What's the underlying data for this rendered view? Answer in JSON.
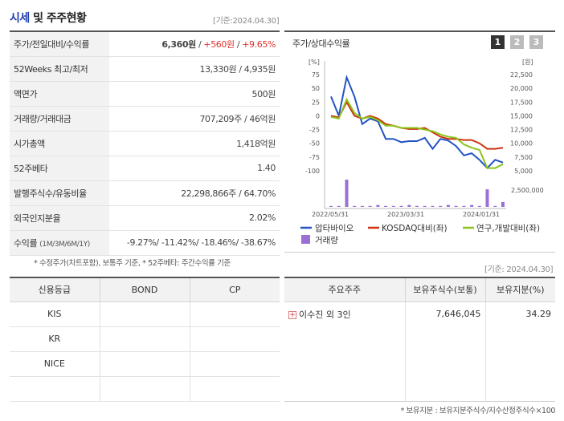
{
  "header": {
    "title_main": "시세",
    "title_rest": "및 주주현황",
    "base_date": "[기준:2024.04.30]"
  },
  "quote": {
    "price_label": "주가/전일대비/수익률",
    "price": "6,360원",
    "change": "+560원",
    "change_pct": "+9.65%",
    "week52_label": "52Weeks 최고/최저",
    "week52_value": "13,330원 / 4,935원",
    "par_label": "액면가",
    "par_value": "500원",
    "volume_label": "거래량/거래대금",
    "volume_value": "707,209주 / 46억원",
    "mcap_label": "시가총액",
    "mcap_value": "1,418억원",
    "beta_label": "52주베타",
    "beta_value": "1.40",
    "shares_label": "발행주식수/유동비율",
    "shares_value": "22,298,866주 / 64.70%",
    "foreign_label": "외국인지분율",
    "foreign_value": "2.02%",
    "return_label": "수익률",
    "return_sub": "(1M/3M/6M/1Y)",
    "return_values": [
      "-9.27%",
      "-11.42%",
      "-18.46%",
      "-38.67%"
    ],
    "note": "* 수정주가(차트포함), 보통주 기준, * 52주베타: 주간수익률 기준"
  },
  "chart_panel": {
    "title": "주가/상대수익률",
    "buttons": [
      "1",
      "2",
      "3"
    ],
    "base_date": "[기준: 2024.04.30]"
  },
  "chart_data": {
    "type": "line",
    "left_unit": "[%]",
    "right_unit": "[원]",
    "left_ticks": [
      "75",
      "50",
      "25",
      "0",
      "-25",
      "-50",
      "-75",
      "-100"
    ],
    "right_ticks": [
      "22,500",
      "20,000",
      "17,500",
      "15,000",
      "12,500",
      "10,000",
      "7,500",
      "5,000"
    ],
    "volume_tick": "2,500,000",
    "x_ticks": [
      "2022/05/31",
      "2023/03/31",
      "2024/01/31"
    ],
    "left_ylim": [
      -100,
      75
    ],
    "series": [
      {
        "name": "압타바이오",
        "color": "#2453c6",
        "values": [
          35,
          0,
          70,
          35,
          -15,
          -5,
          -10,
          -42,
          -42,
          -48,
          -46,
          -46,
          -40,
          -60,
          -42,
          -45,
          -55,
          -72,
          -68,
          -80,
          -95,
          -80,
          -85
        ]
      },
      {
        "name": "KOSDAQ대비(좌)",
        "color": "#cc3311",
        "values": [
          0,
          -3,
          25,
          0,
          -5,
          0,
          -5,
          -15,
          -18,
          -22,
          -24,
          -24,
          -22,
          -30,
          -38,
          -42,
          -42,
          -44,
          -44,
          -50,
          -60,
          -60,
          -58
        ]
      },
      {
        "name": "연구,개발대비(좌)",
        "color": "#8cc41a",
        "values": [
          -2,
          -5,
          30,
          5,
          -5,
          -2,
          -8,
          -18,
          -18,
          -22,
          -22,
          -22,
          -25,
          -28,
          -34,
          -38,
          -40,
          -52,
          -58,
          -62,
          -95,
          -95,
          -88
        ]
      },
      {
        "name": "거래량",
        "color": "#9a70d6",
        "values": [
          0.1,
          0.1,
          2.8,
          0.1,
          0.1,
          0.1,
          0.2,
          0.1,
          0.1,
          0.1,
          0.2,
          0.1,
          0.1,
          0.1,
          0.1,
          0.2,
          0.1,
          0.1,
          0.2,
          0.1,
          1.8,
          0.1,
          0.5
        ]
      }
    ]
  },
  "credit": {
    "headers": [
      "신용등급",
      "BOND",
      "CP"
    ],
    "rows": [
      [
        "KIS",
        "",
        ""
      ],
      [
        "KR",
        "",
        ""
      ],
      [
        "NICE",
        "",
        ""
      ],
      [
        "",
        "",
        ""
      ]
    ]
  },
  "holders": {
    "headers": [
      "주요주주",
      "보유주식수(보통)",
      "보유지분(%)"
    ],
    "rows": [
      [
        "이수진 외 3인",
        "7,646,045",
        "34.29"
      ]
    ],
    "note": "* 보유지분 : 보유지분주식수/지수산정주식수×100"
  },
  "colors": {
    "accent": "#1f3fb0",
    "up": "#e0312c",
    "down": "#1a5fd6"
  }
}
